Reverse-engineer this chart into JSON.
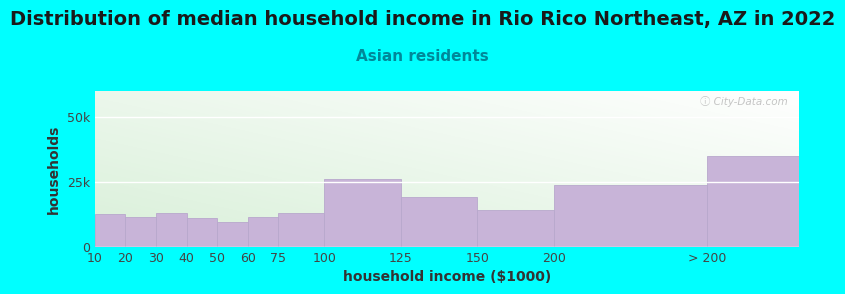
{
  "title": "Distribution of median household income in Rio Rico Northeast, AZ in 2022",
  "subtitle": "Asian residents",
  "xlabel": "household income ($1000)",
  "ylabel": "households",
  "background_color": "#00FFFF",
  "bar_color": "#c8b4d8",
  "bar_edge_color": "#b8a8cc",
  "categories": [
    "10",
    "20",
    "30",
    "40",
    "50",
    "60",
    "75",
    "100",
    "125",
    "150",
    "200",
    "> 200"
  ],
  "left_edges": [
    0,
    10,
    20,
    30,
    40,
    50,
    60,
    75,
    100,
    125,
    150,
    200
  ],
  "right_edges": [
    10,
    20,
    30,
    40,
    50,
    60,
    75,
    100,
    125,
    150,
    200,
    230
  ],
  "values": [
    12500,
    11500,
    13000,
    11000,
    9500,
    11500,
    13000,
    26000,
    19000,
    14000,
    23500,
    35000
  ],
  "ylim": [
    0,
    60000
  ],
  "yticks": [
    0,
    25000,
    50000
  ],
  "ytick_labels": [
    "0",
    "25k",
    "50k"
  ],
  "xlim": [
    0,
    230
  ],
  "title_fontsize": 14,
  "subtitle_fontsize": 11,
  "axis_label_fontsize": 10,
  "tick_fontsize": 9,
  "watermark": "ⓘ City-Data.com",
  "title_color": "#1a1a1a",
  "subtitle_color": "#008899",
  "tick_color": "#444444",
  "axis_label_color": "#333333"
}
